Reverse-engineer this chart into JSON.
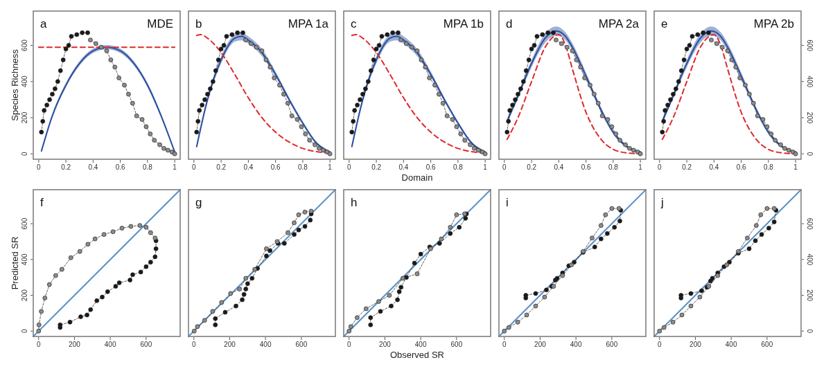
{
  "chart_data": [
    {
      "type": "line",
      "title": "MDE",
      "annotations": [
        "a"
      ],
      "ylabel": "Species Richness",
      "xlim": [
        -0.04,
        1.04
      ],
      "ylim": [
        -30,
        790
      ],
      "xticks": [
        0,
        0.2,
        0.4,
        0.6,
        0.8,
        1
      ],
      "yticks": [
        0,
        200,
        400,
        600
      ],
      "series": [
        {
          "color": "#2a4fa0",
          "x": [
            0.02,
            0.1,
            0.2,
            0.3,
            0.4,
            0.5,
            0.6,
            0.7,
            0.8,
            0.9,
            1
          ],
          "values": [
            15,
            210,
            380,
            500,
            570,
            590,
            570,
            500,
            380,
            210,
            10
          ],
          "lower": [
            10,
            200,
            368,
            488,
            558,
            578,
            558,
            488,
            368,
            200,
            5
          ],
          "upper": [
            20,
            220,
            392,
            512,
            582,
            602,
            582,
            512,
            392,
            220,
            15
          ]
        },
        {
          "color": "#e0272a",
          "line_style": "dashed",
          "x": [
            0,
            1
          ],
          "values": [
            590,
            590
          ]
        },
        {
          "marker": "circle",
          "line_style": "dashed",
          "color": "#1a1a1a",
          "x": [
            0.02,
            0.03,
            0.04,
            0.06,
            0.08,
            0.1,
            0.12,
            0.14,
            0.16,
            0.18,
            0.2,
            0.22,
            0.24,
            0.28,
            0.32,
            0.36
          ],
          "values": [
            120,
            180,
            240,
            270,
            300,
            330,
            360,
            400,
            460,
            520,
            580,
            600,
            650,
            660,
            670,
            670
          ]
        },
        {
          "marker": "circle",
          "line_style": "dashed",
          "color": "#8c8c8c",
          "x": [
            0.38,
            0.42,
            0.46,
            0.5,
            0.53,
            0.56,
            0.59,
            0.63,
            0.66,
            0.69,
            0.72,
            0.76,
            0.79,
            0.82,
            0.85,
            0.89,
            0.92,
            0.95,
            0.98,
            1
          ],
          "values": [
            630,
            610,
            590,
            570,
            520,
            480,
            420,
            380,
            330,
            280,
            210,
            190,
            150,
            110,
            75,
            50,
            30,
            20,
            10,
            0
          ]
        }
      ]
    },
    {
      "type": "line",
      "title": "MPA 1a",
      "annotations": [
        "b"
      ],
      "tick_labels": "x",
      "xlim": [
        -0.04,
        1.04
      ],
      "ylim": [
        -30,
        790
      ],
      "xticks": [
        0,
        0.2,
        0.4,
        0.6,
        0.8,
        1
      ],
      "series": [
        {
          "color": "#2a4fa0",
          "x": [
            0.02,
            0.1,
            0.2,
            0.3,
            0.35,
            0.4,
            0.5,
            0.6,
            0.7,
            0.8,
            0.9,
            1
          ],
          "values": [
            40,
            300,
            520,
            640,
            650,
            630,
            560,
            440,
            300,
            170,
            60,
            10
          ],
          "lower": [
            30,
            285,
            500,
            620,
            628,
            610,
            540,
            425,
            288,
            160,
            52,
            5
          ],
          "upper": [
            50,
            315,
            540,
            660,
            672,
            650,
            580,
            455,
            312,
            180,
            68,
            15
          ]
        },
        {
          "color": "#e0272a",
          "line_style": "dashed",
          "x": [
            0.02,
            0.05,
            0.1,
            0.2,
            0.3,
            0.4,
            0.5,
            0.6,
            0.7,
            0.8,
            0.9,
            1
          ],
          "values": [
            655,
            660,
            640,
            560,
            440,
            310,
            200,
            120,
            65,
            30,
            12,
            5
          ]
        },
        {
          "marker": "circle",
          "line_style": "dashed",
          "color": "#1a1a1a",
          "x": [
            0.02,
            0.03,
            0.04,
            0.06,
            0.08,
            0.1,
            0.12,
            0.14,
            0.16,
            0.18,
            0.2,
            0.22,
            0.24,
            0.28,
            0.32,
            0.36
          ],
          "values": [
            120,
            180,
            240,
            270,
            300,
            330,
            360,
            400,
            460,
            520,
            580,
            600,
            650,
            660,
            670,
            670
          ]
        },
        {
          "marker": "circle",
          "line_style": "dashed",
          "color": "#8c8c8c",
          "x": [
            0.38,
            0.42,
            0.46,
            0.5,
            0.53,
            0.56,
            0.59,
            0.63,
            0.66,
            0.69,
            0.72,
            0.76,
            0.79,
            0.82,
            0.85,
            0.89,
            0.92,
            0.95,
            0.98,
            1
          ],
          "values": [
            630,
            610,
            590,
            570,
            520,
            480,
            420,
            380,
            330,
            280,
            210,
            190,
            150,
            110,
            75,
            50,
            30,
            20,
            10,
            0
          ]
        }
      ]
    },
    {
      "type": "line",
      "title": "MPA 1b",
      "annotations": [
        "c"
      ],
      "xlabel": "Domain",
      "tick_labels": "x",
      "xlim": [
        -0.04,
        1.04
      ],
      "ylim": [
        -30,
        790
      ],
      "xticks": [
        0,
        0.2,
        0.4,
        0.6,
        0.8,
        1
      ],
      "series": [
        {
          "color": "#2a4fa0",
          "x": [
            0.02,
            0.1,
            0.2,
            0.3,
            0.35,
            0.4,
            0.5,
            0.6,
            0.7,
            0.8,
            0.9,
            1
          ],
          "values": [
            40,
            300,
            520,
            640,
            650,
            630,
            560,
            440,
            300,
            170,
            60,
            10
          ],
          "lower": [
            30,
            285,
            500,
            620,
            628,
            610,
            540,
            425,
            288,
            160,
            52,
            5
          ],
          "upper": [
            50,
            315,
            540,
            660,
            672,
            650,
            580,
            455,
            312,
            180,
            68,
            15
          ]
        },
        {
          "color": "#e0272a",
          "line_style": "dashed",
          "x": [
            0.02,
            0.05,
            0.1,
            0.2,
            0.3,
            0.4,
            0.5,
            0.6,
            0.7,
            0.8,
            0.9,
            1
          ],
          "values": [
            655,
            660,
            640,
            560,
            440,
            310,
            200,
            120,
            65,
            30,
            12,
            5
          ]
        },
        {
          "marker": "circle",
          "line_style": "dashed",
          "color": "#1a1a1a",
          "x": [
            0.02,
            0.03,
            0.04,
            0.06,
            0.08,
            0.1,
            0.12,
            0.14,
            0.16,
            0.18,
            0.2,
            0.22,
            0.24,
            0.28,
            0.32,
            0.36
          ],
          "values": [
            120,
            180,
            240,
            270,
            300,
            330,
            360,
            400,
            460,
            520,
            580,
            600,
            650,
            660,
            670,
            670
          ]
        },
        {
          "marker": "circle",
          "line_style": "dashed",
          "color": "#8c8c8c",
          "x": [
            0.38,
            0.42,
            0.46,
            0.5,
            0.53,
            0.56,
            0.59,
            0.63,
            0.66,
            0.69,
            0.72,
            0.76,
            0.79,
            0.82,
            0.85,
            0.89,
            0.92,
            0.95,
            0.98,
            1
          ],
          "values": [
            630,
            610,
            590,
            570,
            520,
            480,
            420,
            380,
            330,
            280,
            210,
            190,
            150,
            110,
            75,
            50,
            30,
            20,
            10,
            0
          ]
        }
      ]
    },
    {
      "type": "line",
      "title": "MPA 2a",
      "annotations": [
        "d"
      ],
      "tick_labels": "x",
      "xlim": [
        -0.04,
        1.04
      ],
      "ylim": [
        -30,
        790
      ],
      "xticks": [
        0,
        0.2,
        0.4,
        0.6,
        0.8,
        1
      ],
      "series": [
        {
          "color": "#2a4fa0",
          "x": [
            0.02,
            0.1,
            0.2,
            0.3,
            0.38,
            0.45,
            0.5,
            0.6,
            0.7,
            0.8,
            0.9,
            1
          ],
          "values": [
            180,
            320,
            500,
            640,
            680,
            650,
            590,
            430,
            260,
            120,
            40,
            10
          ],
          "lower": [
            165,
            305,
            480,
            615,
            655,
            628,
            568,
            410,
            245,
            108,
            32,
            5
          ],
          "upper": [
            195,
            335,
            520,
            665,
            705,
            672,
            612,
            450,
            275,
            132,
            48,
            15
          ]
        },
        {
          "color": "#e0272a",
          "line_style": "dashed",
          "x": [
            0.02,
            0.1,
            0.2,
            0.3,
            0.4,
            0.45,
            0.5,
            0.6,
            0.7,
            0.8,
            0.9,
            1
          ],
          "values": [
            80,
            200,
            400,
            590,
            660,
            600,
            470,
            230,
            90,
            25,
            5,
            0
          ]
        },
        {
          "marker": "circle",
          "line_style": "dashed",
          "color": "#1a1a1a",
          "x": [
            0.02,
            0.03,
            0.04,
            0.06,
            0.08,
            0.1,
            0.12,
            0.14,
            0.16,
            0.18,
            0.2,
            0.22,
            0.24,
            0.28,
            0.32,
            0.36
          ],
          "values": [
            120,
            180,
            240,
            270,
            300,
            330,
            360,
            400,
            460,
            520,
            580,
            600,
            650,
            660,
            670,
            670
          ]
        },
        {
          "marker": "circle",
          "line_style": "dashed",
          "color": "#8c8c8c",
          "x": [
            0.38,
            0.42,
            0.46,
            0.5,
            0.53,
            0.56,
            0.59,
            0.63,
            0.66,
            0.69,
            0.72,
            0.76,
            0.79,
            0.82,
            0.85,
            0.89,
            0.92,
            0.95,
            0.98,
            1
          ],
          "values": [
            630,
            610,
            590,
            570,
            520,
            480,
            420,
            380,
            330,
            280,
            210,
            190,
            150,
            110,
            75,
            50,
            30,
            20,
            10,
            0
          ]
        }
      ]
    },
    {
      "type": "line",
      "title": "MPA 2b",
      "annotations": [
        "e"
      ],
      "xlim": [
        -0.04,
        1.04
      ],
      "ylim": [
        -30,
        790
      ],
      "xticks": [
        0,
        0.2,
        0.4,
        0.6,
        0.8,
        1
      ],
      "yticks": [
        0,
        200,
        400,
        600
      ],
      "series": [
        {
          "color": "#2a4fa0",
          "x": [
            0.02,
            0.1,
            0.2,
            0.3,
            0.38,
            0.45,
            0.5,
            0.6,
            0.7,
            0.8,
            0.9,
            1
          ],
          "values": [
            180,
            320,
            500,
            640,
            680,
            650,
            590,
            430,
            260,
            120,
            40,
            10
          ],
          "lower": [
            165,
            305,
            480,
            615,
            655,
            628,
            568,
            410,
            245,
            108,
            32,
            5
          ],
          "upper": [
            195,
            335,
            520,
            665,
            705,
            672,
            612,
            450,
            275,
            132,
            48,
            15
          ]
        },
        {
          "color": "#e0272a",
          "line_style": "dashed",
          "x": [
            0.02,
            0.1,
            0.2,
            0.3,
            0.4,
            0.45,
            0.5,
            0.6,
            0.7,
            0.8,
            0.9,
            1
          ],
          "values": [
            80,
            200,
            400,
            590,
            660,
            600,
            470,
            230,
            90,
            25,
            5,
            0
          ]
        },
        {
          "marker": "circle",
          "line_style": "dashed",
          "color": "#1a1a1a",
          "x": [
            0.02,
            0.03,
            0.04,
            0.06,
            0.08,
            0.1,
            0.12,
            0.14,
            0.16,
            0.18,
            0.2,
            0.22,
            0.24,
            0.28,
            0.32,
            0.36
          ],
          "values": [
            120,
            180,
            240,
            270,
            300,
            330,
            360,
            400,
            460,
            520,
            580,
            600,
            650,
            660,
            670,
            670
          ]
        },
        {
          "marker": "circle",
          "line_style": "dashed",
          "color": "#8c8c8c",
          "x": [
            0.38,
            0.42,
            0.46,
            0.5,
            0.53,
            0.56,
            0.59,
            0.63,
            0.66,
            0.69,
            0.72,
            0.76,
            0.79,
            0.82,
            0.85,
            0.89,
            0.92,
            0.95,
            0.98,
            1
          ],
          "values": [
            630,
            610,
            590,
            570,
            520,
            480,
            420,
            380,
            330,
            280,
            210,
            190,
            150,
            110,
            75,
            50,
            30,
            20,
            10,
            0
          ]
        }
      ]
    },
    {
      "type": "line",
      "annotations": [
        "f"
      ],
      "ylabel": "Predicted SR",
      "xlim": [
        -30,
        790
      ],
      "ylim": [
        -30,
        790
      ],
      "xticks": [
        0,
        200,
        400,
        600
      ],
      "yticks": [
        0,
        200,
        400,
        600
      ],
      "series": [
        {
          "color": "#5b92c8",
          "x": [
            -30,
            790
          ],
          "values": [
            -30,
            790
          ]
        },
        {
          "marker": "circle",
          "line_style": "dashed",
          "color": "#1a1a1a",
          "x": [
            120,
            120,
            175,
            235,
            270,
            290,
            325,
            355,
            385,
            430,
            450,
            510,
            525,
            570,
            600,
            625,
            650,
            655,
            655
          ],
          "values": [
            20,
            35,
            50,
            80,
            90,
            120,
            170,
            190,
            220,
            250,
            270,
            285,
            315,
            330,
            360,
            385,
            415,
            460,
            505
          ]
        },
        {
          "marker": "circle",
          "line_style": "dashed",
          "color": "#8c8c8c",
          "x": [
            650,
            625,
            600,
            565,
            515,
            465,
            415,
            365,
            315,
            275,
            230,
            180,
            130,
            95,
            60,
            35,
            15,
            2,
            0
          ],
          "values": [
            520,
            550,
            580,
            590,
            585,
            575,
            555,
            540,
            515,
            485,
            445,
            410,
            345,
            310,
            260,
            185,
            110,
            35,
            0
          ]
        }
      ]
    },
    {
      "type": "line",
      "annotations": [
        "g"
      ],
      "tick_labels": "x",
      "xlim": [
        -30,
        790
      ],
      "ylim": [
        -30,
        790
      ],
      "xticks": [
        0,
        200,
        400,
        600
      ],
      "series": [
        {
          "color": "#5b92c8",
          "x": [
            -30,
            790
          ],
          "values": [
            -30,
            790
          ]
        },
        {
          "marker": "circle",
          "line_style": "dashed",
          "color": "#1a1a1a",
          "x": [
            120,
            120,
            175,
            235,
            270,
            280,
            290,
            300,
            325,
            355,
            405,
            425,
            470,
            505,
            560,
            585,
            620,
            650,
            655
          ],
          "values": [
            35,
            70,
            105,
            140,
            175,
            205,
            235,
            265,
            295,
            350,
            420,
            450,
            490,
            490,
            540,
            565,
            585,
            620,
            655
          ]
        },
        {
          "marker": "circle",
          "line_style": "dashed",
          "color": "#8c8c8c",
          "x": [
            655,
            620,
            585,
            560,
            525,
            465,
            405,
            340,
            290,
            255,
            205,
            155,
            105,
            60,
            20,
            2
          ],
          "values": [
            670,
            665,
            650,
            605,
            550,
            500,
            460,
            345,
            295,
            235,
            210,
            160,
            110,
            60,
            25,
            0
          ]
        }
      ]
    },
    {
      "type": "line",
      "annotations": [
        "h"
      ],
      "xlabel": "Observed SR",
      "tick_labels": "x",
      "xlim": [
        -30,
        790
      ],
      "ylim": [
        -30,
        790
      ],
      "xticks": [
        0,
        200,
        400,
        600
      ],
      "series": [
        {
          "color": "#5b92c8",
          "x": [
            -30,
            790
          ],
          "values": [
            -30,
            790
          ]
        },
        {
          "marker": "circle",
          "line_style": "dashed",
          "color": "#1a1a1a",
          "x": [
            120,
            120,
            175,
            235,
            270,
            280,
            290,
            320,
            365,
            400,
            450,
            505,
            565,
            615,
            650,
            655
          ],
          "values": [
            35,
            75,
            110,
            140,
            175,
            220,
            245,
            300,
            380,
            430,
            470,
            490,
            545,
            580,
            630,
            655
          ]
        },
        {
          "marker": "circle",
          "line_style": "dashed",
          "color": "#8c8c8c",
          "x": [
            645,
            600,
            565,
            515,
            455,
            380,
            300,
            225,
            165,
            95,
            45,
            10,
            0
          ],
          "values": [
            655,
            650,
            580,
            515,
            460,
            320,
            295,
            200,
            165,
            125,
            75,
            25,
            0
          ]
        }
      ]
    },
    {
      "type": "line",
      "annotations": [
        "i"
      ],
      "tick_labels": "x",
      "xlim": [
        -30,
        790
      ],
      "ylim": [
        -30,
        790
      ],
      "xticks": [
        0,
        200,
        400,
        600
      ],
      "series": [
        {
          "color": "#5b92c8",
          "x": [
            -30,
            790
          ],
          "values": [
            -30,
            790
          ]
        },
        {
          "marker": "circle",
          "line_style": "dashed",
          "color": "#1a1a1a",
          "x": [
            120,
            120,
            175,
            235,
            265,
            285,
            295,
            325,
            360,
            390,
            440,
            505,
            540,
            575,
            615,
            645,
            650
          ],
          "values": [
            185,
            200,
            210,
            230,
            250,
            285,
            295,
            325,
            365,
            385,
            440,
            470,
            515,
            545,
            580,
            615,
            675
          ]
        },
        {
          "marker": "circle",
          "line_style": "dashed",
          "color": "#8c8c8c",
          "x": [
            640,
            600,
            565,
            540,
            490,
            440,
            375,
            325,
            275,
            225,
            175,
            125,
            75,
            25,
            0
          ],
          "values": [
            685,
            685,
            650,
            590,
            520,
            445,
            370,
            310,
            250,
            190,
            140,
            90,
            50,
            20,
            0
          ]
        }
      ]
    },
    {
      "type": "line",
      "annotations": [
        "j"
      ],
      "xlim": [
        -30,
        790
      ],
      "ylim": [
        -30,
        790
      ],
      "xticks": [
        0,
        200,
        400,
        600
      ],
      "yticks": [
        0,
        200,
        400,
        600
      ],
      "series": [
        {
          "color": "#5b92c8",
          "x": [
            -30,
            790
          ],
          "values": [
            -30,
            790
          ]
        },
        {
          "marker": "circle",
          "line_style": "dashed",
          "color": "#1a1a1a",
          "x": [
            120,
            120,
            175,
            235,
            265,
            285,
            295,
            325,
            360,
            390,
            440,
            500,
            535,
            570,
            610,
            640,
            650
          ],
          "values": [
            185,
            200,
            210,
            225,
            245,
            280,
            295,
            325,
            360,
            385,
            435,
            460,
            505,
            540,
            575,
            610,
            675
          ]
        },
        {
          "marker": "circle",
          "line_style": "dashed",
          "color": "#8c8c8c",
          "x": [
            640,
            600,
            565,
            540,
            490,
            440,
            375,
            325,
            275,
            225,
            175,
            125,
            75,
            25,
            0
          ],
          "values": [
            685,
            685,
            650,
            590,
            520,
            445,
            370,
            310,
            250,
            190,
            140,
            90,
            50,
            20,
            0
          ]
        }
      ]
    }
  ]
}
